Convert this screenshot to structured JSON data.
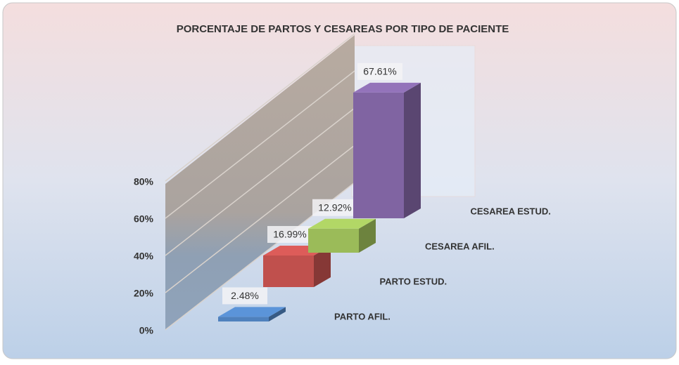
{
  "chart_data": {
    "type": "bar3d",
    "title": "PORCENTAJE DE PARTOS Y CESAREAS POR TIPO DE PACIENTE",
    "categories": [
      "PARTO AFIL.",
      "PARTO ESTUD.",
      "CESAREA AFIL.",
      "CESAREA ESTUD."
    ],
    "values": [
      2.48,
      16.99,
      12.92,
      67.61
    ],
    "value_labels": [
      "2.48%",
      "16.99%",
      "12.92%",
      "67.61%"
    ],
    "colors": [
      "#4f81bd",
      "#c0504d",
      "#9bbb59",
      "#8064a2"
    ],
    "ylim": [
      0,
      80
    ],
    "yticks": [
      {
        "value": 0,
        "label": "0%"
      },
      {
        "value": 20,
        "label": "20%"
      },
      {
        "value": 40,
        "label": "40%"
      },
      {
        "value": 60,
        "label": "60%"
      },
      {
        "value": 80,
        "label": "80%"
      }
    ],
    "grid": true
  }
}
